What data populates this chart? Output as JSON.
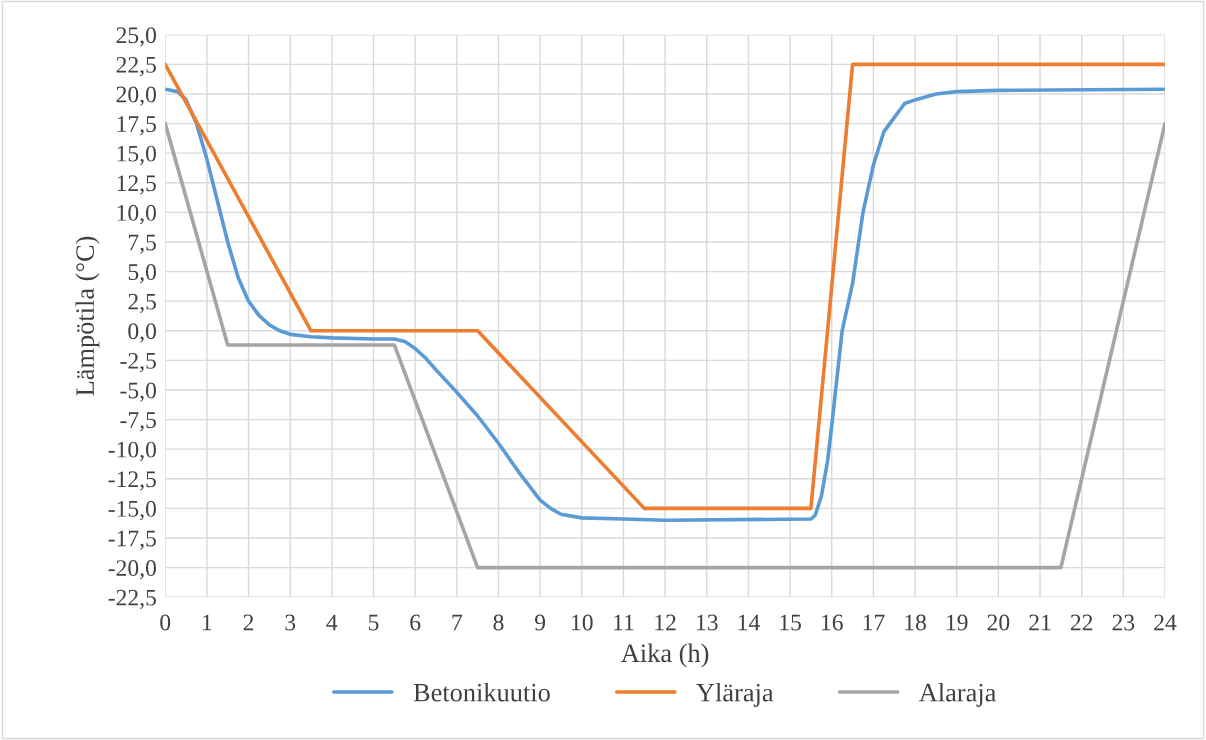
{
  "chart_data": {
    "type": "line",
    "xlabel": "Aika (h)",
    "ylabel": "Lämpötila (°C)",
    "xlim": [
      0,
      24
    ],
    "xticks": [
      0,
      1,
      2,
      3,
      4,
      5,
      6,
      7,
      8,
      9,
      10,
      11,
      12,
      13,
      14,
      15,
      16,
      17,
      18,
      19,
      20,
      21,
      22,
      23,
      24
    ],
    "ylim": [
      -22.5,
      25
    ],
    "yticks": [
      {
        "value": -22.5,
        "label": "-22,5"
      },
      {
        "value": -20,
        "label": "-20,0"
      },
      {
        "value": -17.5,
        "label": "-17,5"
      },
      {
        "value": -15,
        "label": "-15,0"
      },
      {
        "value": -12.5,
        "label": "-12,5"
      },
      {
        "value": -10,
        "label": "-10,0"
      },
      {
        "value": -7.5,
        "label": "-7,5"
      },
      {
        "value": -5,
        "label": "-5,0"
      },
      {
        "value": -2.5,
        "label": "-2,5"
      },
      {
        "value": 0,
        "label": "0,0"
      },
      {
        "value": 2.5,
        "label": "2,5"
      },
      {
        "value": 5,
        "label": "5,0"
      },
      {
        "value": 7.5,
        "label": "7,5"
      },
      {
        "value": 10,
        "label": "10,0"
      },
      {
        "value": 12.5,
        "label": "12,5"
      },
      {
        "value": 15,
        "label": "15,0"
      },
      {
        "value": 17.5,
        "label": "17,5"
      },
      {
        "value": 20,
        "label": "20,0"
      },
      {
        "value": 22.5,
        "label": "22,5"
      },
      {
        "value": 25,
        "label": "25,0"
      }
    ],
    "grid": true,
    "legend": "bottom",
    "marker": "none",
    "line_style": "solid",
    "series": [
      {
        "name": "Betonikuutio",
        "color": "#5b9bd5",
        "x": [
          0,
          0.3,
          0.5,
          0.75,
          1,
          1.25,
          1.5,
          1.75,
          2,
          2.25,
          2.5,
          2.75,
          3,
          3.5,
          4,
          5,
          5.5,
          5.75,
          6,
          6.25,
          6.5,
          7,
          7.5,
          8,
          8.5,
          9,
          9.25,
          9.5,
          10,
          11,
          12,
          15.5,
          15.6,
          15.75,
          15.9,
          16,
          16.25,
          16.5,
          16.75,
          17,
          17.25,
          17.5,
          17.75,
          18,
          18.5,
          19,
          20,
          24
        ],
        "values": [
          20.4,
          20.2,
          19.5,
          17.5,
          14.5,
          11,
          7.5,
          4.5,
          2.5,
          1.3,
          0.5,
          0,
          -0.3,
          -0.5,
          -0.6,
          -0.7,
          -0.7,
          -0.9,
          -1.5,
          -2.3,
          -3.3,
          -5.2,
          -7.2,
          -9.5,
          -12,
          -14.3,
          -15,
          -15.5,
          -15.8,
          -15.9,
          -16,
          -15.9,
          -15.6,
          -14,
          -11,
          -8,
          0,
          4,
          10,
          14,
          16.8,
          18,
          19.2,
          19.5,
          20,
          20.2,
          20.3,
          20.4
        ]
      },
      {
        "name": "Yläraja",
        "color": "#ed7d31",
        "x": [
          0,
          3.5,
          7.5,
          11.5,
          15.5,
          16.5,
          24
        ],
        "values": [
          22.5,
          0,
          0,
          -15,
          -15,
          22.5,
          22.5
        ]
      },
      {
        "name": "Alaraja",
        "color": "#a5a5a5",
        "x": [
          0,
          1.5,
          5.5,
          7.5,
          21.5,
          24
        ],
        "values": [
          17.5,
          -1.2,
          -1.2,
          -20,
          -20,
          17.5
        ]
      }
    ]
  }
}
